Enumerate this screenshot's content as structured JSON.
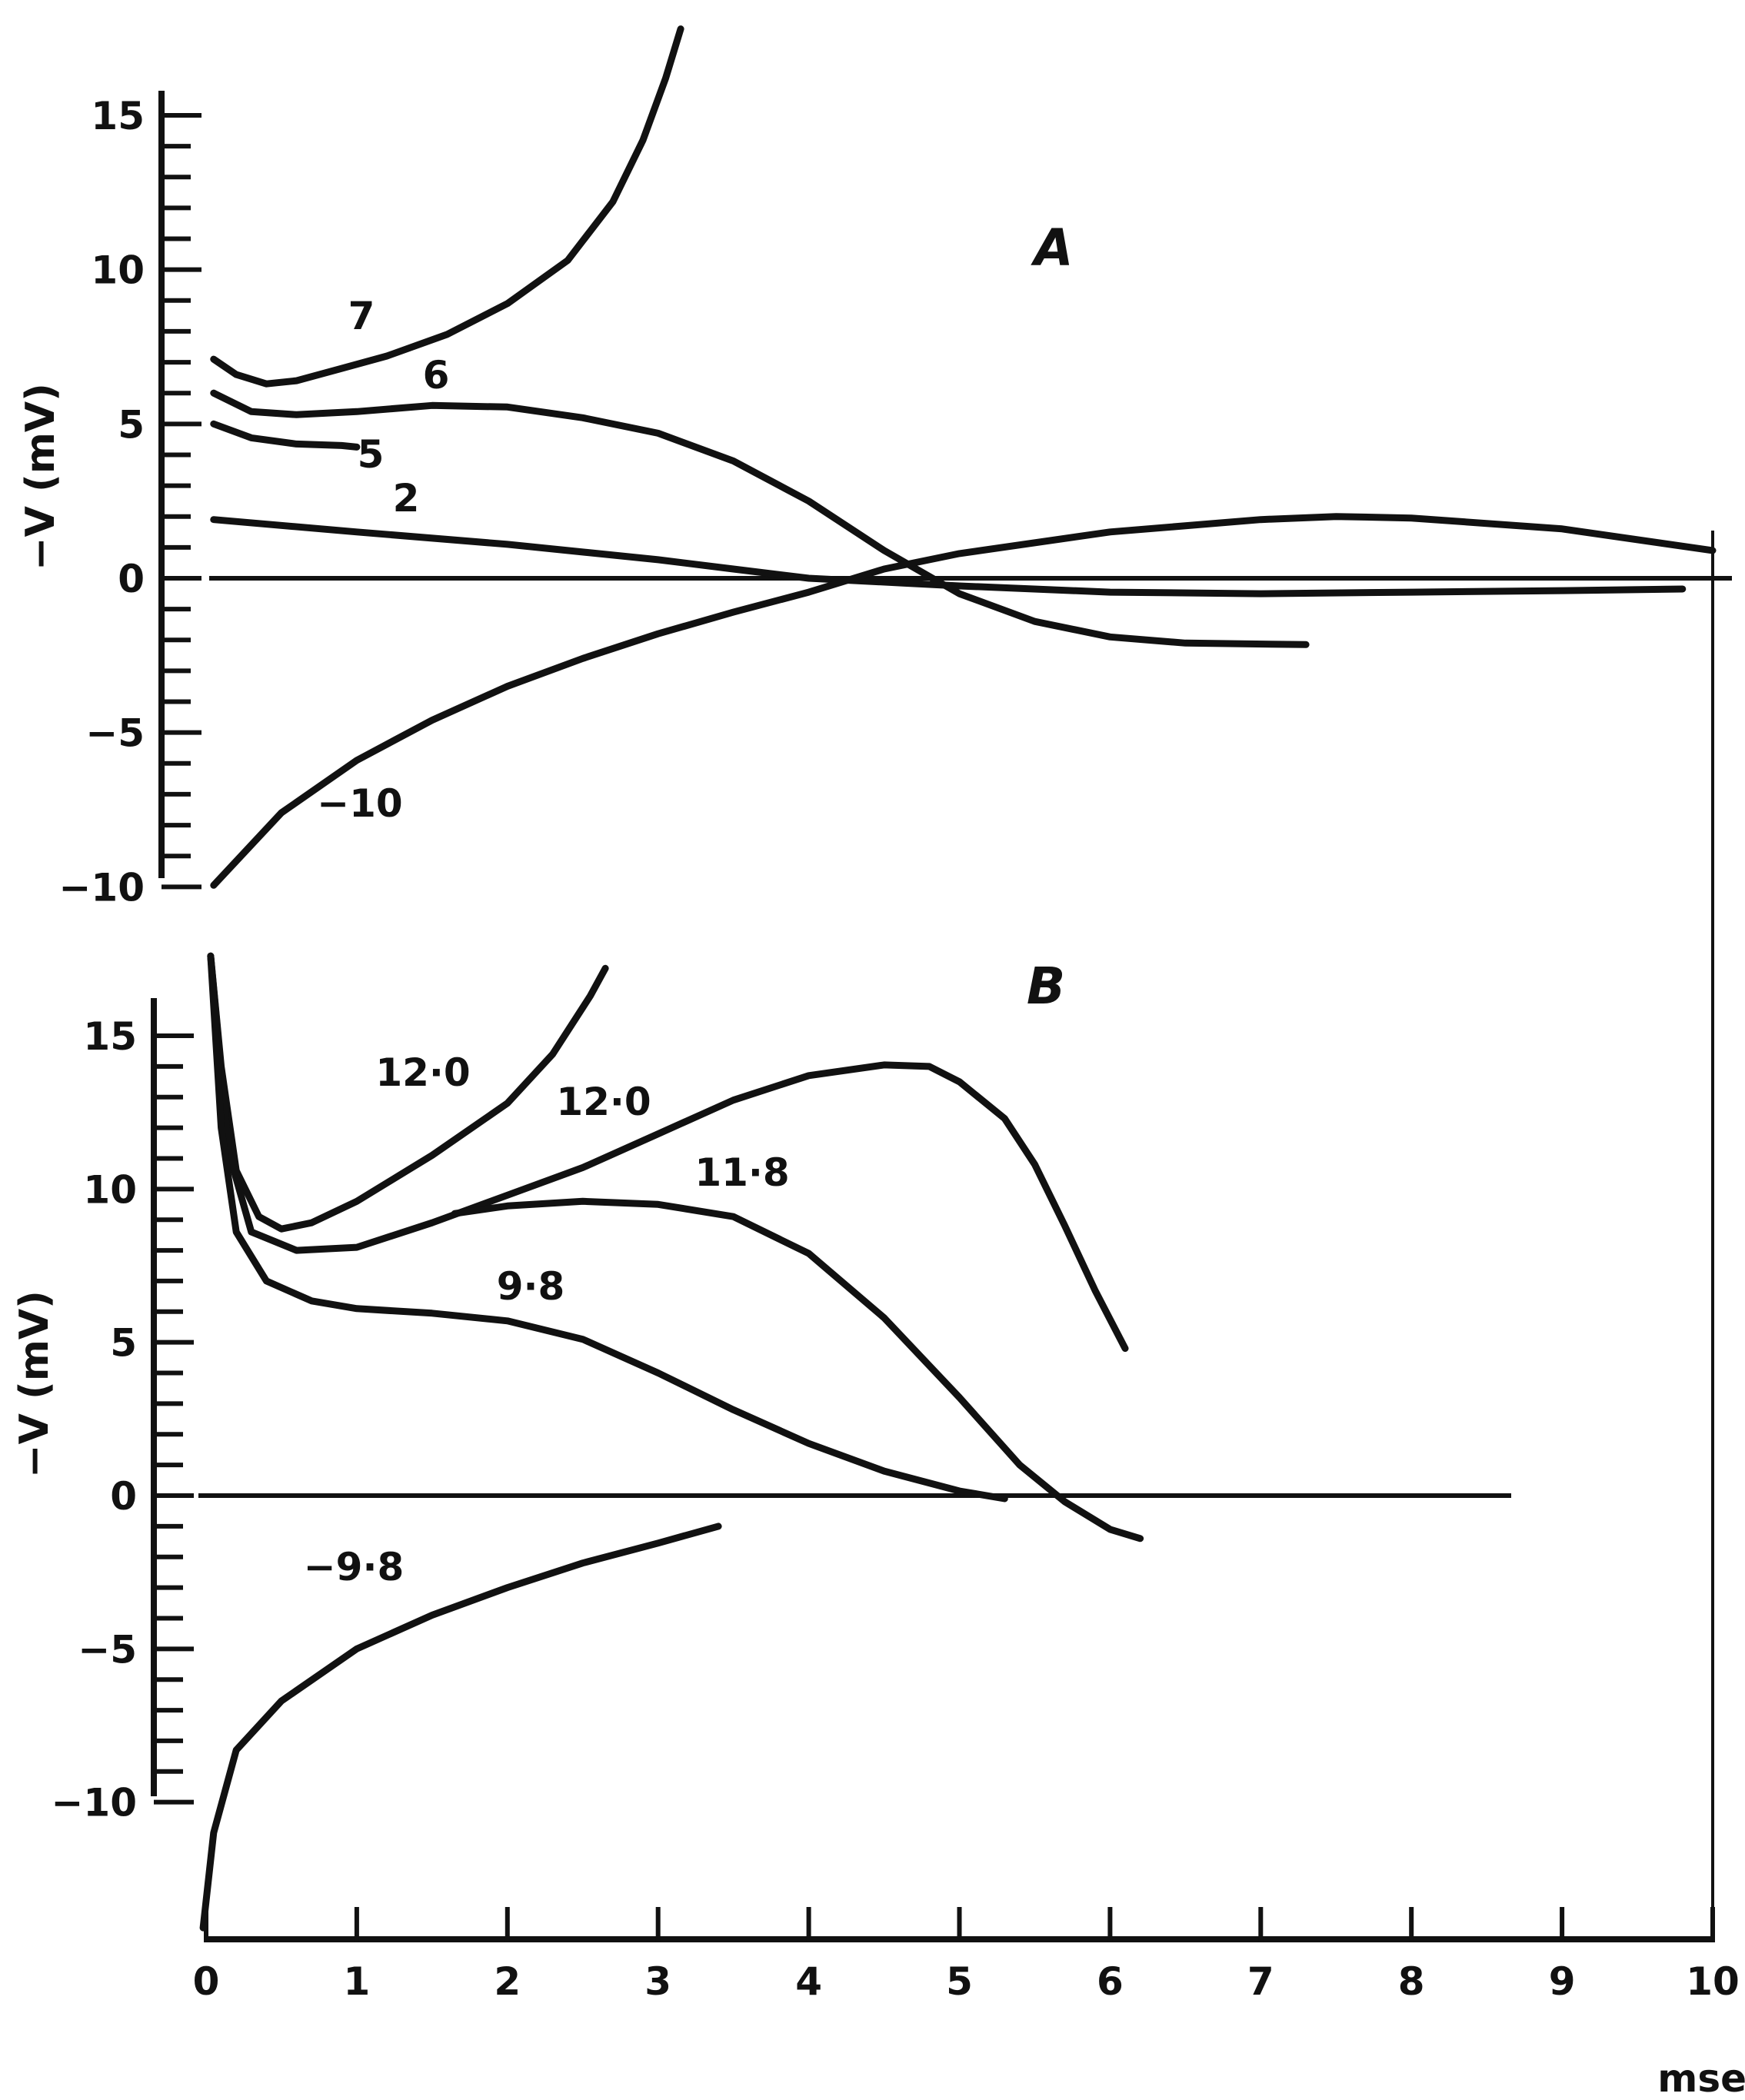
{
  "chart_data": [
    {
      "panel": "A",
      "type": "line",
      "xlabel": "msec",
      "ylabel": "−V (mV)",
      "xlim": [
        0,
        10
      ],
      "ylim": [
        -10,
        15
      ],
      "y_ticks": [
        "15",
        "10",
        "5",
        "0",
        "−5",
        "−10"
      ],
      "series": [
        {
          "name": "7",
          "points": [
            [
              0.05,
              7.1
            ],
            [
              0.2,
              6.6
            ],
            [
              0.4,
              6.3
            ],
            [
              0.6,
              6.4
            ],
            [
              0.9,
              6.8
            ],
            [
              1.2,
              7.2
            ],
            [
              1.6,
              7.9
            ],
            [
              2.0,
              8.9
            ],
            [
              2.4,
              10.3
            ],
            [
              2.7,
              12.2
            ],
            [
              2.9,
              14.2
            ],
            [
              3.05,
              16.2
            ],
            [
              3.15,
              17.8
            ]
          ]
        },
        {
          "name": "6",
          "points": [
            [
              0.05,
              6.0
            ],
            [
              0.3,
              5.4
            ],
            [
              0.6,
              5.3
            ],
            [
              1.0,
              5.4
            ],
            [
              1.5,
              5.6
            ],
            [
              2.0,
              5.55
            ],
            [
              2.5,
              5.2
            ],
            [
              3.0,
              4.7
            ],
            [
              3.5,
              3.8
            ],
            [
              4.0,
              2.5
            ],
            [
              4.5,
              0.9
            ],
            [
              5.0,
              -0.5
            ],
            [
              5.5,
              -1.4
            ],
            [
              6.0,
              -1.9
            ],
            [
              6.5,
              -2.1
            ],
            [
              7.3,
              -2.15
            ]
          ]
        },
        {
          "name": "5",
          "points": [
            [
              0.05,
              5.0
            ],
            [
              0.3,
              4.55
            ],
            [
              0.6,
              4.35
            ],
            [
              0.9,
              4.3
            ],
            [
              1.0,
              4.25
            ]
          ]
        },
        {
          "name": "2",
          "points": [
            [
              0.05,
              1.9
            ],
            [
              1.0,
              1.5
            ],
            [
              2.0,
              1.1
            ],
            [
              3.0,
              0.6
            ],
            [
              3.5,
              0.3
            ],
            [
              4.0,
              0.0
            ],
            [
              5.0,
              -0.25
            ],
            [
              6.0,
              -0.45
            ],
            [
              7.0,
              -0.5
            ],
            [
              8.0,
              -0.45
            ],
            [
              9.0,
              -0.4
            ],
            [
              9.8,
              -0.35
            ]
          ]
        },
        {
          "name": "−10",
          "points": [
            [
              0.05,
              -9.95
            ],
            [
              0.5,
              -7.6
            ],
            [
              1.0,
              -5.9
            ],
            [
              1.5,
              -4.6
            ],
            [
              2.0,
              -3.5
            ],
            [
              2.5,
              -2.6
            ],
            [
              3.0,
              -1.8
            ],
            [
              3.5,
              -1.1
            ],
            [
              4.0,
              -0.45
            ],
            [
              4.5,
              0.3
            ],
            [
              5.0,
              0.8
            ],
            [
              6.0,
              1.5
            ],
            [
              7.0,
              1.9
            ],
            [
              7.5,
              2.0
            ],
            [
              8.0,
              1.95
            ],
            [
              9.0,
              1.6
            ],
            [
              10.0,
              0.9
            ]
          ]
        }
      ]
    },
    {
      "panel": "B",
      "type": "line",
      "xlabel": "msec",
      "ylabel": "−V (mV)",
      "xlim": [
        0,
        10
      ],
      "ylim": [
        -10,
        15
      ],
      "x_ticks": [
        "0",
        "1",
        "2",
        "3",
        "4",
        "5",
        "6",
        "7",
        "8",
        "9",
        "10"
      ],
      "y_ticks": [
        "15",
        "10",
        "5",
        "0",
        "−5",
        "−10"
      ],
      "series": [
        {
          "name": "12·0",
          "points": [
            [
              0.03,
              17.6
            ],
            [
              0.1,
              14.0
            ],
            [
              0.2,
              10.6
            ],
            [
              0.35,
              9.1
            ],
            [
              0.5,
              8.7
            ],
            [
              0.7,
              8.9
            ],
            [
              1.0,
              9.6
            ],
            [
              1.5,
              11.1
            ],
            [
              2.0,
              12.8
            ],
            [
              2.3,
              14.4
            ],
            [
              2.55,
              16.3
            ],
            [
              2.65,
              17.2
            ]
          ]
        },
        {
          "name": "12·0",
          "points": [
            [
              0.03,
              17.6
            ],
            [
              0.15,
              11.2
            ],
            [
              0.3,
              8.6
            ],
            [
              0.6,
              8.0
            ],
            [
              1.0,
              8.1
            ],
            [
              1.5,
              8.9
            ],
            [
              2.0,
              9.8
            ],
            [
              2.5,
              10.7
            ],
            [
              3.0,
              11.8
            ],
            [
              3.5,
              12.9
            ],
            [
              4.0,
              13.7
            ],
            [
              4.5,
              14.05
            ],
            [
              4.8,
              14.0
            ],
            [
              5.0,
              13.5
            ],
            [
              5.3,
              12.3
            ],
            [
              5.5,
              10.8
            ],
            [
              5.7,
              8.8
            ],
            [
              5.9,
              6.7
            ],
            [
              6.1,
              4.8
            ]
          ]
        },
        {
          "name": "11·8",
          "points": [
            [
              1.65,
              9.2
            ],
            [
              2.0,
              9.45
            ],
            [
              2.5,
              9.6
            ],
            [
              3.0,
              9.5
            ],
            [
              3.5,
              9.1
            ],
            [
              4.0,
              7.9
            ],
            [
              4.5,
              5.8
            ],
            [
              5.0,
              3.2
            ],
            [
              5.4,
              1.0
            ],
            [
              5.7,
              -0.2
            ],
            [
              6.0,
              -1.1
            ],
            [
              6.2,
              -1.4
            ]
          ]
        },
        {
          "name": "9·8",
          "points": [
            [
              0.03,
              17.6
            ],
            [
              0.1,
              12.0
            ],
            [
              0.2,
              8.6
            ],
            [
              0.4,
              7.0
            ],
            [
              0.7,
              6.35
            ],
            [
              1.0,
              6.1
            ],
            [
              1.5,
              5.95
            ],
            [
              2.0,
              5.7
            ],
            [
              2.5,
              5.1
            ],
            [
              3.0,
              4.0
            ],
            [
              3.5,
              2.8
            ],
            [
              4.0,
              1.7
            ],
            [
              4.5,
              0.8
            ],
            [
              5.0,
              0.15
            ],
            [
              5.3,
              -0.1
            ]
          ]
        },
        {
          "name": "−9·8",
          "points": [
            [
              -0.02,
              -14.1
            ],
            [
              0.05,
              -11.0
            ],
            [
              0.2,
              -8.3
            ],
            [
              0.5,
              -6.7
            ],
            [
              1.0,
              -5.0
            ],
            [
              1.5,
              -3.9
            ],
            [
              2.0,
              -3.0
            ],
            [
              2.5,
              -2.2
            ],
            [
              3.0,
              -1.55
            ],
            [
              3.4,
              -1.0
            ]
          ]
        }
      ]
    }
  ],
  "panels": {
    "a": {
      "label": "A",
      "ylabel": "−V (mV)",
      "tick_labels": [
        "15",
        "10",
        "5",
        "0",
        "−5",
        "−10"
      ]
    },
    "b": {
      "label": "B",
      "ylabel": "−V (mV)",
      "tick_labels": [
        "15",
        "10",
        "5",
        "0",
        "−5",
        "−10"
      ]
    }
  },
  "x_axis": {
    "tick_labels": [
      "0",
      "1",
      "2",
      "3",
      "4",
      "5",
      "6",
      "7",
      "8",
      "9",
      "10"
    ],
    "unit": "msec"
  }
}
